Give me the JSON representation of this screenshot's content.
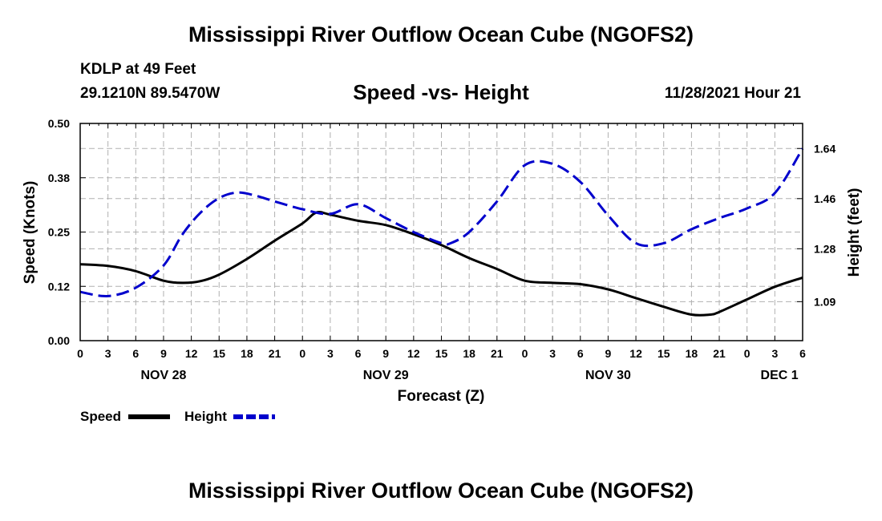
{
  "header": {
    "title": "Mississippi River Outflow Ocean Cube (NGOFS2)",
    "station": "KDLP at 49 Feet",
    "coordinates": "29.1210N  89.5470W",
    "datetime": "11/28/2021 Hour 21"
  },
  "footer": {
    "title": "Mississippi River Outflow Ocean Cube (NGOFS2)"
  },
  "chart_data": {
    "type": "line",
    "title": "Speed -vs- Height",
    "xlabel": "Forecast (Z)",
    "ylabel": "Speed (Knots)",
    "y2label": "Height (feet)",
    "xlim": [
      0,
      78
    ],
    "ylim": [
      0,
      0.5
    ],
    "y2lim": [
      0.95,
      1.73
    ],
    "grid": true,
    "x_ticks": [
      0,
      3,
      6,
      9,
      12,
      15,
      18,
      21,
      24,
      27,
      30,
      33,
      36,
      39,
      42,
      45,
      48,
      51,
      54,
      57,
      60,
      63,
      66,
      69,
      72,
      75,
      78
    ],
    "x_tick_labels": [
      "0",
      "3",
      "6",
      "9",
      "12",
      "15",
      "18",
      "21",
      "0",
      "3",
      "6",
      "9",
      "12",
      "15",
      "18",
      "21",
      "0",
      "3",
      "6",
      "9",
      "12",
      "15",
      "18",
      "21",
      "0",
      "3",
      "6"
    ],
    "day_labels": [
      {
        "x": 9,
        "label": "NOV 28"
      },
      {
        "x": 33,
        "label": "NOV 29"
      },
      {
        "x": 57,
        "label": "NOV 30"
      },
      {
        "x": 75.5,
        "label": "DEC 1"
      }
    ],
    "y_ticks": [
      0.0,
      0.125,
      0.25,
      0.375,
      0.5
    ],
    "y_tick_labels": [
      "0.00",
      "0.12",
      "0.25",
      "0.38",
      "0.50"
    ],
    "y2_ticks": [
      1.09,
      1.28,
      1.46,
      1.64
    ],
    "y2_tick_labels": [
      "1.09",
      "1.28",
      "1.46",
      "1.64"
    ],
    "series": [
      {
        "name": "Speed",
        "axis": "left",
        "color": "#000000",
        "style": "solid",
        "x": [
          0,
          3,
          6,
          9,
          11,
          13,
          15,
          18,
          21,
          24,
          25.5,
          27,
          30,
          33,
          36,
          39,
          42,
          45,
          48,
          51,
          54,
          57,
          60,
          63,
          66,
          68,
          69,
          72,
          75,
          78
        ],
        "values": [
          0.176,
          0.172,
          0.16,
          0.138,
          0.133,
          0.137,
          0.152,
          0.188,
          0.23,
          0.27,
          0.295,
          0.29,
          0.276,
          0.266,
          0.245,
          0.22,
          0.19,
          0.165,
          0.138,
          0.133,
          0.13,
          0.118,
          0.098,
          0.078,
          0.06,
          0.06,
          0.066,
          0.095,
          0.124,
          0.145
        ]
      },
      {
        "name": "Height",
        "axis": "right",
        "color": "#0000cc",
        "style": "dashed",
        "x": [
          0,
          3,
          6,
          9,
          11,
          13,
          15,
          17,
          19,
          21,
          24,
          27,
          30,
          33,
          36,
          39,
          40,
          42,
          45,
          48,
          51,
          54,
          57,
          60,
          63,
          66,
          69,
          72,
          75,
          78
        ],
        "values": [
          1.125,
          1.11,
          1.14,
          1.22,
          1.33,
          1.41,
          1.462,
          1.482,
          1.47,
          1.45,
          1.422,
          1.405,
          1.44,
          1.39,
          1.34,
          1.3,
          1.3,
          1.34,
          1.45,
          1.58,
          1.585,
          1.52,
          1.4,
          1.3,
          1.3,
          1.35,
          1.39,
          1.425,
          1.48,
          1.64
        ]
      }
    ]
  }
}
